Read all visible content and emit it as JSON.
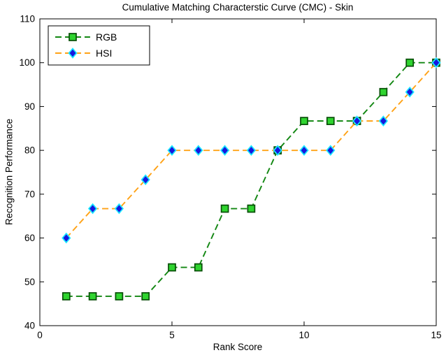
{
  "figure": {
    "title": "Cumulative Matching Characterstic Curve (CMC) - Skin",
    "xlabel": "Rank Score",
    "ylabel": "Recognition Performance"
  },
  "chart_data": {
    "type": "line",
    "title": "Cumulative Matching Characterstic Curve (CMC) - Skin",
    "xlabel": "Rank Score",
    "ylabel": "Recognition Performance",
    "xlim": [
      0,
      15
    ],
    "ylim": [
      40,
      110
    ],
    "xticks": [
      0,
      5,
      10,
      15
    ],
    "yticks": [
      40,
      50,
      60,
      70,
      80,
      90,
      100,
      110
    ],
    "grid": false,
    "legend_position": "top-left",
    "x": [
      1,
      2,
      3,
      4,
      5,
      6,
      7,
      8,
      9,
      10,
      11,
      12,
      13,
      14,
      15
    ],
    "series": [
      {
        "name": "RGB",
        "values": [
          46.7,
          46.7,
          46.7,
          46.7,
          53.3,
          53.3,
          66.7,
          66.7,
          80,
          86.7,
          86.7,
          86.7,
          93.3,
          100,
          100
        ],
        "line_color": "#128712",
        "line_style": "dashed",
        "marker": "square",
        "marker_face": "#2fd42f",
        "marker_edge": "#074d07"
      },
      {
        "name": "HSI",
        "values": [
          60,
          66.7,
          66.7,
          73.3,
          80,
          80,
          80,
          80,
          80,
          80,
          80,
          86.7,
          86.7,
          93.3,
          100
        ],
        "line_color": "#ffa216",
        "line_style": "dashed",
        "marker": "diamond",
        "marker_face": "#1616e0",
        "marker_edge": "#19e8ff"
      }
    ]
  }
}
